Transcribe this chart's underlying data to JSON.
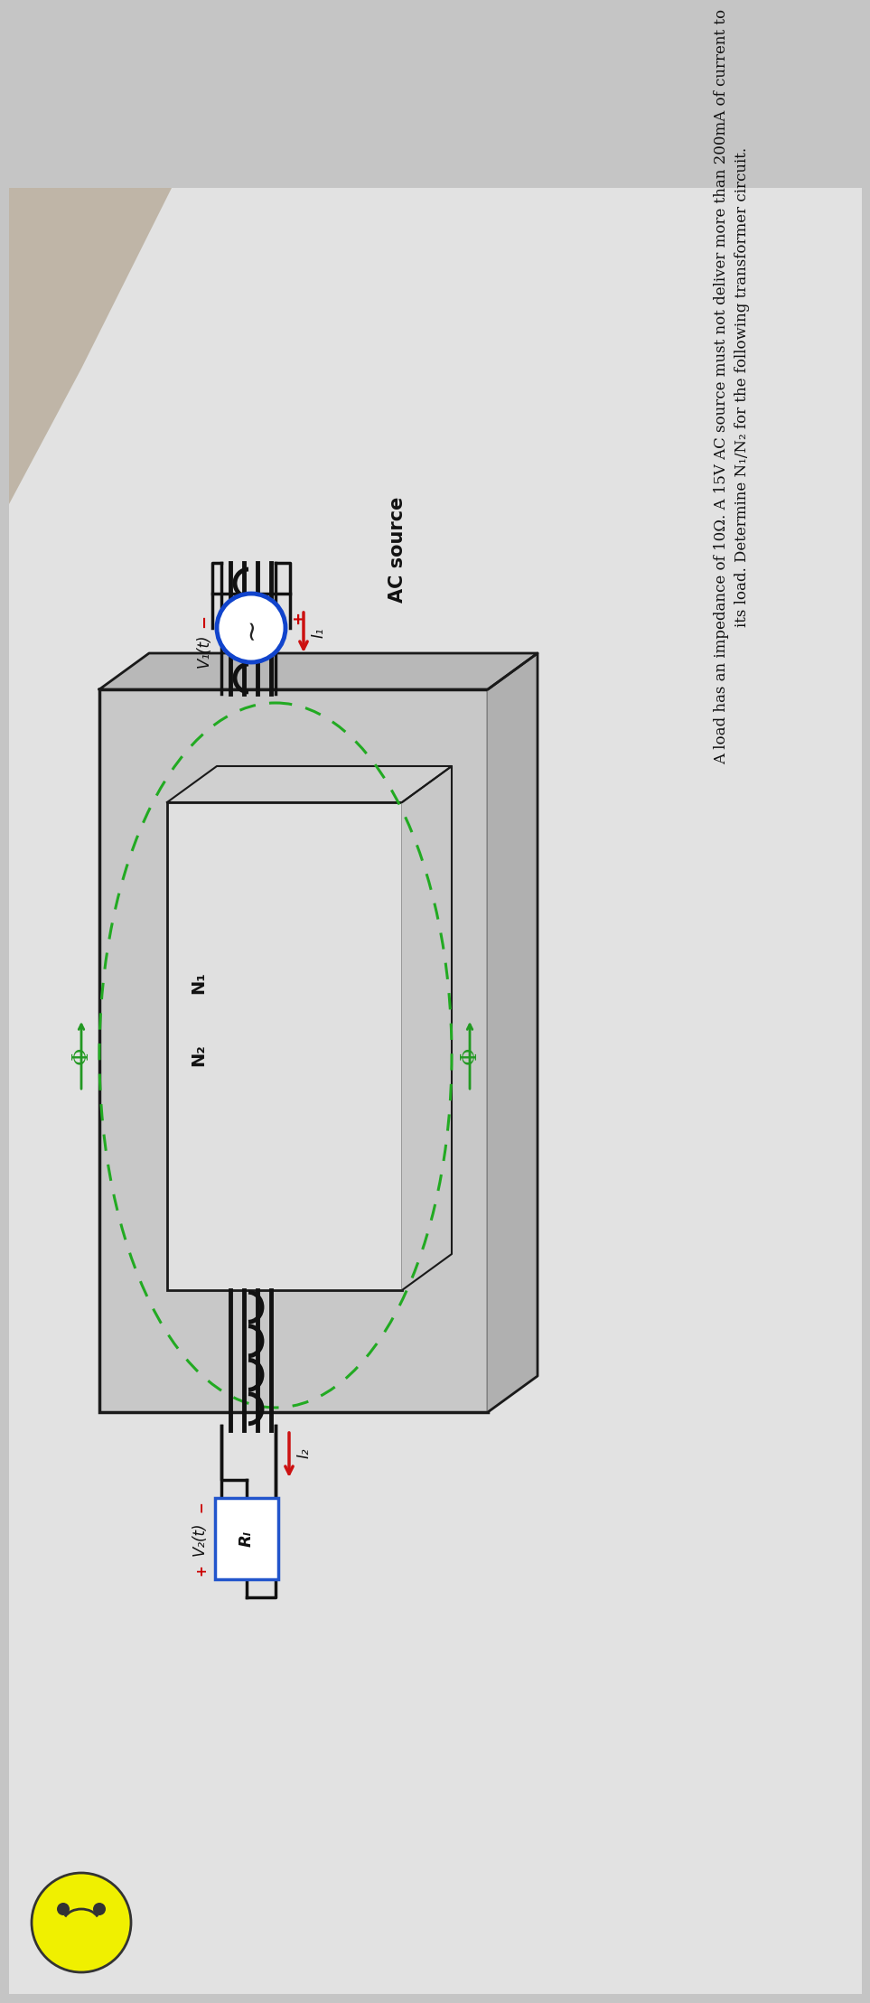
{
  "problem_line1": "A load has an impedance of 10Ω. A 15V AC source must not deliver more than 200mA of current to",
  "problem_line2": "its load. Determine N₁/N₂ for the following transformer circuit.",
  "label_ac_source": "AC source",
  "label_i1": "I₁",
  "label_i2": "I₂",
  "label_v1": "V₁(t)",
  "label_v2": "V₂(t)",
  "label_n1": "N₁",
  "label_n2": "N₂",
  "label_rl": "Rₗ",
  "bg_color": "#c5c5c5",
  "paper_color": "#e2e2e2",
  "box_outer_face": "#c0c0c0",
  "box_outer_side": "#b0b0b0",
  "box_inner_face": "#d8d8d8",
  "box_edge": "#1a1a1a",
  "wire_color": "#111111",
  "dashed_color": "#22aa22",
  "arrow_red": "#cc1111",
  "source_blue": "#1144cc",
  "phi_green": "#229922",
  "rl_blue": "#2255cc",
  "text_color": "#111111",
  "plus_red": "#cc0000",
  "minus_red": "#cc0000",
  "winding_color": "#111111"
}
